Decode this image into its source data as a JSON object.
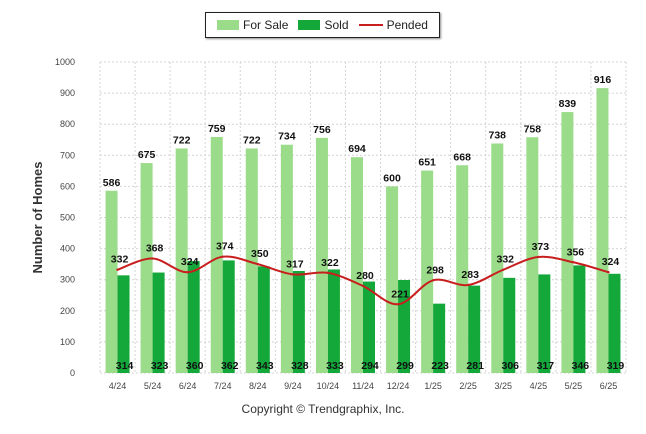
{
  "legend": {
    "for_sale": "For Sale",
    "sold": "Sold",
    "pended": "Pended"
  },
  "copyright": "Copyright © Trendgraphix, Inc.",
  "colors": {
    "for_sale": "#9bdc8a",
    "sold": "#14a83a",
    "pended": "#c81e1e",
    "grid": "#d4d4d4"
  },
  "chart_data": {
    "type": "bar",
    "ylabel": "Number of Homes",
    "xlabel": "",
    "title": "",
    "ylim": [
      0,
      1000
    ],
    "yticks": [
      0,
      100,
      200,
      300,
      400,
      500,
      600,
      700,
      800,
      900,
      1000
    ],
    "categories": [
      "4/24",
      "5/24",
      "6/24",
      "7/24",
      "8/24",
      "9/24",
      "10/24",
      "11/24",
      "12/24",
      "1/25",
      "2/25",
      "3/25",
      "4/25",
      "5/25",
      "6/25"
    ],
    "series": [
      {
        "name": "For Sale",
        "kind": "bar",
        "values": [
          586,
          675,
          722,
          759,
          722,
          734,
          756,
          694,
          600,
          651,
          668,
          738,
          758,
          839,
          916
        ]
      },
      {
        "name": "Sold",
        "kind": "bar",
        "values": [
          314,
          323,
          360,
          362,
          343,
          328,
          333,
          294,
          299,
          223,
          281,
          306,
          317,
          346,
          319
        ]
      },
      {
        "name": "Pended",
        "kind": "line",
        "values": [
          332,
          368,
          324,
          374,
          350,
          317,
          322,
          280,
          221,
          298,
          283,
          332,
          373,
          356,
          324
        ]
      }
    ],
    "grid": true,
    "legend_position": "top-center"
  }
}
